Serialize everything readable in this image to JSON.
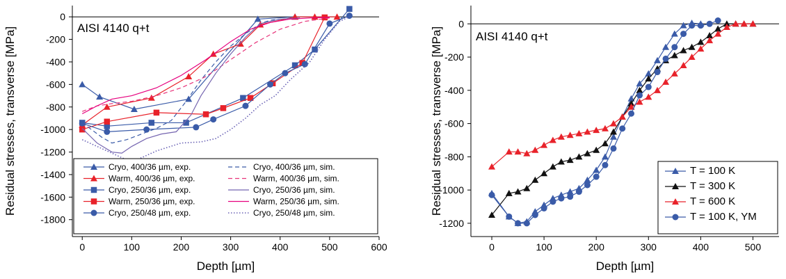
{
  "chart_data": [
    {
      "type": "line",
      "annotation": "AISI 4140 q+t",
      "xlabel": "Depth [µm]",
      "ylabel": "Residual stresses, transverse [MPa]",
      "xlim": [
        -20,
        600
      ],
      "ylim": [
        -1950,
        100
      ],
      "xticks": [
        0,
        100,
        200,
        300,
        400,
        500,
        600
      ],
      "yticks": [
        0,
        -200,
        -400,
        -600,
        -800,
        -1000,
        -1200,
        -1400,
        -1600,
        -1800
      ],
      "zero_line": true,
      "legend_position": "bottom",
      "series": [
        {
          "name": "Cryo, 400/36 µm, exp.",
          "color": "#3a5ba8",
          "marker": "triangle",
          "dash": "solid",
          "x": [
            0,
            35,
            105,
            215,
            355,
            430
          ],
          "y": [
            -600,
            -710,
            -820,
            -730,
            -20,
            0
          ]
        },
        {
          "name": "Warm, 400/36 µm, exp.",
          "color": "#e8222a",
          "marker": "triangle",
          "dash": "solid",
          "x": [
            0,
            50,
            140,
            215,
            265,
            320,
            360,
            430,
            470,
            515
          ],
          "y": [
            -960,
            -800,
            -720,
            -530,
            -330,
            -240,
            -70,
            0,
            0,
            0
          ]
        },
        {
          "name": "Cryo, 250/36 µm, exp.",
          "color": "#3a5ba8",
          "marker": "square",
          "dash": "solid",
          "x": [
            0,
            50,
            140,
            210,
            325,
            430,
            470,
            540
          ],
          "y": [
            -940,
            -970,
            -940,
            -940,
            -720,
            -430,
            -290,
            70
          ]
        },
        {
          "name": "Warm, 250/36 µm, exp.",
          "color": "#e8222a",
          "marker": "square",
          "dash": "solid",
          "x": [
            0,
            50,
            150,
            250,
            285,
            340,
            385,
            445,
            490
          ],
          "y": [
            -1000,
            -930,
            -850,
            -865,
            -810,
            -720,
            -590,
            -410,
            -5
          ]
        },
        {
          "name": "Cryo, 250/48 µm, exp.",
          "color": "#3a5ba8",
          "marker": "circle",
          "dash": "solid",
          "x": [
            0,
            50,
            130,
            230,
            265,
            330,
            380,
            410,
            450,
            500,
            540
          ],
          "y": [
            -945,
            -1020,
            -1000,
            -980,
            -910,
            -790,
            -600,
            -500,
            -420,
            -60,
            10
          ]
        },
        {
          "name": "Cryo, 400/36 µm, sim.",
          "color": "#3a5ba8",
          "marker": "none",
          "dash": "dash",
          "x": [
            0,
            40,
            60,
            90,
            120,
            150,
            180,
            210,
            240,
            270,
            300,
            330,
            360,
            380,
            400
          ],
          "y": [
            -940,
            -1070,
            -1120,
            -1090,
            -1040,
            -990,
            -920,
            -750,
            -560,
            -400,
            -260,
            -150,
            -60,
            -30,
            -20
          ]
        },
        {
          "name": "Warm, 400/36 µm, sim.",
          "color": "#e8337a",
          "marker": "none",
          "dash": "dash",
          "x": [
            0,
            30,
            60,
            100,
            150,
            200,
            250,
            300,
            350,
            400,
            450,
            500
          ],
          "y": [
            -840,
            -790,
            -770,
            -750,
            -700,
            -630,
            -530,
            -380,
            -230,
            -110,
            -40,
            -10
          ]
        },
        {
          "name": "Cryo, 250/36 µm, sim.",
          "color": "#7565b0",
          "marker": "none",
          "dash": "solid",
          "x": [
            0,
            30,
            60,
            80,
            100,
            130,
            160,
            190,
            220,
            240,
            270,
            300,
            330,
            360,
            400,
            440
          ],
          "y": [
            -990,
            -1120,
            -1200,
            -1210,
            -1150,
            -1080,
            -1040,
            -1020,
            -870,
            -700,
            -500,
            -330,
            -180,
            -60,
            -20,
            -10
          ]
        },
        {
          "name": "Warm, 250/36 µm, sim.",
          "color": "#e6007e",
          "marker": "none",
          "dash": "solid",
          "x": [
            0,
            30,
            60,
            100,
            150,
            200,
            250,
            300,
            340,
            380,
            420,
            460,
            500
          ],
          "y": [
            -860,
            -790,
            -730,
            -700,
            -630,
            -520,
            -380,
            -220,
            -110,
            -50,
            -20,
            -10,
            -5
          ]
        },
        {
          "name": "Cryo, 250/48 µm, sim.",
          "color": "#6a62b5",
          "marker": "none",
          "dash": "dot",
          "x": [
            0,
            30,
            60,
            100,
            150,
            200,
            240,
            270,
            300,
            330,
            360,
            390,
            420,
            460,
            490,
            520,
            540
          ],
          "y": [
            -1090,
            -1150,
            -1210,
            -1290,
            -1190,
            -1120,
            -1110,
            -1080,
            -1000,
            -900,
            -780,
            -700,
            -560,
            -400,
            -200,
            -40,
            0
          ]
        }
      ]
    },
    {
      "type": "line",
      "annotation": "AISI 4140 q+t",
      "xlabel": "Depth [µm]",
      "ylabel": "Residual stresses, transverse [MPa]",
      "xlim": [
        -40,
        550
      ],
      "ylim": [
        -1280,
        110
      ],
      "xticks": [
        0,
        100,
        200,
        300,
        400,
        500
      ],
      "yticks": [
        0,
        -200,
        -400,
        -600,
        -800,
        -1000,
        -1200
      ],
      "zero_line": true,
      "legend_position": "bottom-right",
      "series": [
        {
          "name": "T = 100 K",
          "color": "#3a5ba8",
          "marker": "triangle",
          "dash": "solid",
          "x": [
            0,
            33,
            50,
            67,
            83,
            100,
            117,
            133,
            150,
            167,
            183,
            200,
            217,
            233,
            250,
            267,
            283,
            300,
            317,
            333,
            350,
            367,
            383,
            400
          ],
          "y": [
            -1020,
            -1160,
            -1200,
            -1190,
            -1130,
            -1090,
            -1050,
            -1030,
            -1010,
            -990,
            -940,
            -880,
            -800,
            -680,
            -560,
            -450,
            -360,
            -300,
            -220,
            -140,
            -60,
            -10,
            5,
            0
          ]
        },
        {
          "name": "T = 300 K",
          "color": "#111111",
          "marker": "triangle",
          "dash": "solid",
          "x": [
            0,
            33,
            50,
            67,
            83,
            100,
            117,
            133,
            150,
            167,
            183,
            200,
            217,
            233,
            250,
            267,
            283,
            300,
            317,
            333,
            350,
            367,
            383,
            400,
            417,
            433,
            450,
            467,
            483,
            500
          ],
          "y": [
            -1150,
            -1020,
            -1010,
            -990,
            -940,
            -900,
            -860,
            -830,
            -820,
            -800,
            -780,
            -760,
            -720,
            -650,
            -560,
            -480,
            -400,
            -330,
            -270,
            -220,
            -190,
            -160,
            -140,
            -110,
            -70,
            -30,
            0,
            0,
            0,
            0
          ]
        },
        {
          "name": "T = 600 K",
          "color": "#e8222a",
          "marker": "triangle",
          "dash": "solid",
          "x": [
            0,
            33,
            50,
            67,
            83,
            100,
            117,
            133,
            150,
            167,
            183,
            200,
            217,
            233,
            250,
            267,
            283,
            300,
            317,
            333,
            350,
            367,
            383,
            400,
            417,
            433,
            450,
            467,
            483,
            500
          ],
          "y": [
            -860,
            -770,
            -770,
            -780,
            -760,
            -730,
            -700,
            -680,
            -670,
            -660,
            -650,
            -640,
            -630,
            -600,
            -560,
            -500,
            -470,
            -440,
            -400,
            -350,
            -300,
            -250,
            -200,
            -150,
            -100,
            -60,
            -20,
            0,
            0,
            0
          ]
        },
        {
          "name": "T = 100 K, YM",
          "color": "#3a5ba8",
          "marker": "circle",
          "dash": "solid",
          "x": [
            0,
            33,
            50,
            67,
            83,
            100,
            117,
            133,
            150,
            167,
            183,
            200,
            217,
            233,
            250,
            267,
            283,
            300,
            317,
            333,
            350,
            367,
            383,
            400,
            417,
            433
          ],
          "y": [
            -1030,
            -1160,
            -1200,
            -1200,
            -1150,
            -1110,
            -1070,
            -1050,
            -1040,
            -1010,
            -970,
            -920,
            -850,
            -750,
            -630,
            -540,
            -430,
            -380,
            -290,
            -210,
            -140,
            -60,
            -10,
            -10,
            0,
            20
          ]
        }
      ]
    }
  ]
}
